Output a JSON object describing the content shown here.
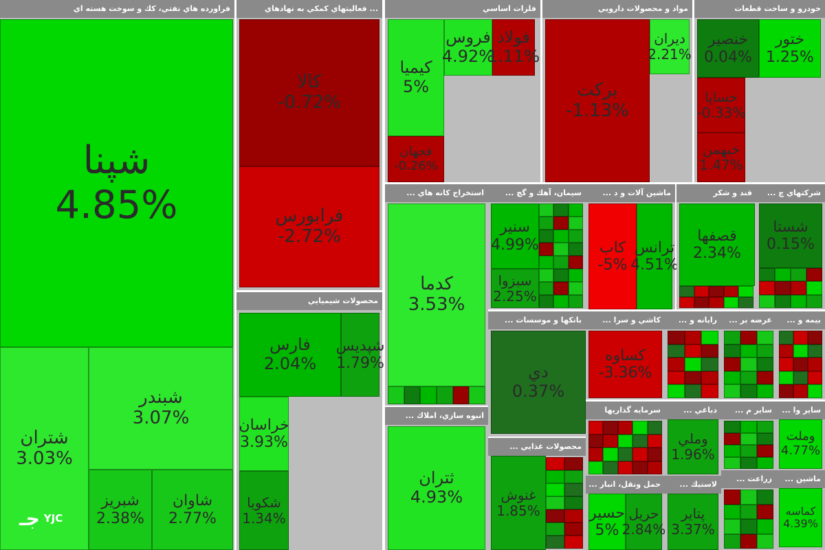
{
  "colors": {
    "g1": "#00b700",
    "g2": "#00d800",
    "g3": "#22e322",
    "g4": "#2ee82e",
    "g5": "#18c818",
    "g6": "#0ea30e",
    "g7": "#0e7c0e",
    "g8": "#1f6f1f",
    "r1": "#b10000",
    "r2": "#990000",
    "r3": "#cc0000",
    "r4": "#f00000",
    "r5": "#8a0505"
  },
  "sectors": [
    {
      "title": "فراورده هاي نفتي، كك و سوخت هسته اي",
      "tiles": [
        {
          "name": "شپنا",
          "pct": "4.85%",
          "color": "g2"
        },
        {
          "name": "شتران",
          "pct": "3.03%",
          "color": "g4"
        },
        {
          "name": "شبندر",
          "pct": "3.07%",
          "color": "g4"
        },
        {
          "name": "شبريز",
          "pct": "2.38%",
          "color": "g5"
        },
        {
          "name": "شاوان",
          "pct": "2.77%",
          "color": "g5"
        }
      ]
    },
    {
      "title": "... فعاليتهاي كمكي به نهادهاي",
      "tiles": [
        {
          "name": "كالا",
          "pct": "-0.72%",
          "color": "r2"
        },
        {
          "name": "فرابورس",
          "pct": "-2.72%",
          "color": "r3"
        }
      ]
    },
    {
      "title": "محصولات شيميايي",
      "tiles": [
        {
          "name": "فارس",
          "pct": "2.04%",
          "color": "g1"
        },
        {
          "name": "شپديس",
          "pct": "1.79%",
          "color": "g6"
        },
        {
          "name": "خراسان",
          "pct": "3.93%",
          "color": "g3"
        },
        {
          "name": "شكويا",
          "pct": "1.34%",
          "color": "g6"
        }
      ]
    },
    {
      "title": "فلزات اساسي",
      "tiles": [
        {
          "name": "كيميا",
          "pct": "5%",
          "color": "g3"
        },
        {
          "name": "فروس",
          "pct": "4.92%",
          "color": "g3"
        },
        {
          "name": "فولاد",
          "pct": "1.11%",
          "color": "r1"
        },
        {
          "name": "فجهان",
          "pct": "-0.26%",
          "color": "r1"
        }
      ]
    },
    {
      "title": "مواد و محصولات دارويي",
      "tiles": [
        {
          "name": "بركت",
          "pct": "-1.13%",
          "color": "r1"
        },
        {
          "name": "ديران",
          "pct": "2.21%",
          "color": "g4"
        }
      ]
    },
    {
      "title": "خودرو و ساخت قطعات",
      "tiles": [
        {
          "name": "خنصير",
          "pct": "0.04%",
          "color": "g7"
        },
        {
          "name": "ختور",
          "pct": "1.25%",
          "color": "g2"
        },
        {
          "name": "خساپا",
          "pct": "-0.33%",
          "color": "r1"
        },
        {
          "name": "خبهمن",
          "pct": "1.47%",
          "color": "r1"
        }
      ]
    },
    {
      "title": "استخراج كانه هاي ...",
      "tiles": [
        {
          "name": "كدما",
          "pct": "3.53%",
          "color": "g4"
        }
      ]
    },
    {
      "title": "سيمان، آهك و گچ ...",
      "tiles": [
        {
          "name": "سنير",
          "pct": "4.99%",
          "color": "g1"
        },
        {
          "name": "سبزوا",
          "pct": "2.25%",
          "color": "g6"
        }
      ]
    },
    {
      "title": "ماشين آلات و د ...",
      "tiles": [
        {
          "name": "كاب",
          "pct": "-5%",
          "color": "r4"
        },
        {
          "name": "ترانس",
          "pct": "4.51%",
          "color": "g1"
        }
      ]
    },
    {
      "title": "قند و شكر",
      "tiles": [
        {
          "name": "قصفها",
          "pct": "2.34%",
          "color": "g1"
        }
      ]
    },
    {
      "title": "شركتهاي چ ...",
      "tiles": [
        {
          "name": "شستا",
          "pct": "0.15%",
          "color": "g7"
        }
      ]
    },
    {
      "title": "بانكها و موسسات ...",
      "tiles": [
        {
          "name": "دي",
          "pct": "0.37%",
          "color": "g8"
        }
      ]
    },
    {
      "title": "كاشي و سرا ...",
      "tiles": [
        {
          "name": "كساوه",
          "pct": "-3.36%",
          "color": "r3"
        }
      ]
    },
    {
      "title": "انبوه سازي، املاك ...",
      "tiles": [
        {
          "name": "ثتران",
          "pct": "4.93%",
          "color": "g3"
        }
      ]
    },
    {
      "title": "محصولات غذايي ...",
      "tiles": [
        {
          "name": "غنوش",
          "pct": "1.85%",
          "color": "g6"
        }
      ]
    },
    {
      "title": "سرمايه گذاريها",
      "tiles": []
    },
    {
      "title": "دباغي ...",
      "tiles": [
        {
          "name": "وملي",
          "pct": "1.96%",
          "color": "g6"
        }
      ]
    },
    {
      "title": "حمل ونقل، انبار ...",
      "tiles": [
        {
          "name": "حسير",
          "pct": "5%",
          "color": "g2"
        },
        {
          "name": "حريل",
          "pct": "2.84%",
          "color": "g6"
        }
      ]
    },
    {
      "title": "لاستيك ...",
      "tiles": [
        {
          "name": "پتاير",
          "pct": "3.37%",
          "color": "g6"
        }
      ]
    },
    {
      "title": "رايانه و ...",
      "tiles": []
    },
    {
      "title": "عرضه بر ...",
      "tiles": []
    },
    {
      "title": "بيمه و ...",
      "tiles": []
    },
    {
      "title": "ساير م ...",
      "tiles": []
    },
    {
      "title": "ساير وا ...",
      "tiles": [
        {
          "name": "وملت",
          "pct": "4.77%",
          "color": "g2"
        }
      ]
    },
    {
      "title": "زراعت ...",
      "tiles": []
    },
    {
      "title": "ماشين ...",
      "tiles": [
        {
          "name": "كماسه",
          "pct": "4.39%",
          "color": "g2"
        }
      ]
    }
  ],
  "logo": {
    "mark": "جـ",
    "text": "YJC"
  }
}
